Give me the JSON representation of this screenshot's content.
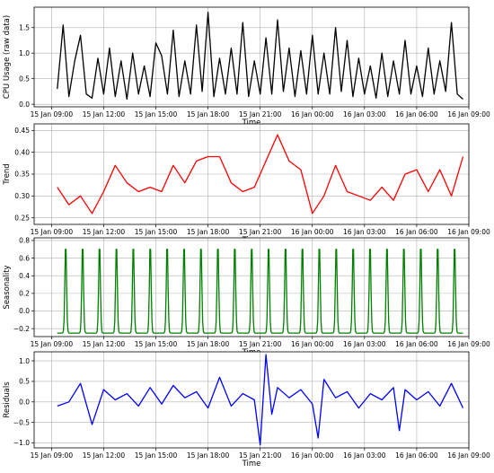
{
  "chart_data": [
    {
      "type": "line",
      "ylabel": "CPU Usage (raw data)",
      "xlabel": "Time",
      "x_start": "15 Jan 09:00",
      "x_end": "16 Jan 09:00",
      "xticks": [
        "15 Jan 09:00",
        "15 Jan 12:00",
        "15 Jan 15:00",
        "15 Jan 18:00",
        "15 Jan 21:00",
        "16 Jan 00:00",
        "16 Jan 03:00",
        "16 Jan 06:00",
        "16 Jan 09:00"
      ],
      "ylim": [
        -0.05,
        1.9
      ],
      "yticks": [
        0.0,
        0.5,
        1.0,
        1.5
      ],
      "yticklabels": [
        "0.0",
        "0.5",
        "1.0",
        "1.5"
      ],
      "grid": true,
      "color": "#000000",
      "series": [
        {
          "x": [
            "15 Jan 09:20",
            "15 Jan 09:40",
            "15 Jan 10:00",
            "15 Jan 10:20",
            "15 Jan 10:40",
            "15 Jan 11:00",
            "15 Jan 11:20",
            "15 Jan 11:40",
            "15 Jan 12:00",
            "15 Jan 12:20",
            "15 Jan 12:40",
            "15 Jan 13:00",
            "15 Jan 13:20",
            "15 Jan 13:40",
            "15 Jan 14:00",
            "15 Jan 14:20",
            "15 Jan 14:40",
            "15 Jan 15:00",
            "15 Jan 15:20",
            "15 Jan 15:40",
            "15 Jan 16:00",
            "15 Jan 16:20",
            "15 Jan 16:40",
            "15 Jan 17:00",
            "15 Jan 17:20",
            "15 Jan 17:40",
            "15 Jan 18:00",
            "15 Jan 18:20",
            "15 Jan 18:40",
            "15 Jan 19:00",
            "15 Jan 19:20",
            "15 Jan 19:40",
            "15 Jan 20:00",
            "15 Jan 20:20",
            "15 Jan 20:40",
            "15 Jan 21:00",
            "15 Jan 21:20",
            "15 Jan 21:40",
            "15 Jan 22:00",
            "15 Jan 22:20",
            "15 Jan 22:40",
            "15 Jan 23:00",
            "15 Jan 23:20",
            "15 Jan 23:40",
            "16 Jan 00:00",
            "16 Jan 00:20",
            "16 Jan 00:40",
            "16 Jan 01:00",
            "16 Jan 01:20",
            "16 Jan 01:40",
            "16 Jan 02:00",
            "16 Jan 02:20",
            "16 Jan 02:40",
            "16 Jan 03:00",
            "16 Jan 03:20",
            "16 Jan 03:40",
            "16 Jan 04:00",
            "16 Jan 04:20",
            "16 Jan 04:40",
            "16 Jan 05:00",
            "16 Jan 05:20",
            "16 Jan 05:40",
            "16 Jan 06:00",
            "16 Jan 06:20",
            "16 Jan 06:40",
            "16 Jan 07:00",
            "16 Jan 07:20",
            "16 Jan 07:40",
            "16 Jan 08:00",
            "16 Jan 08:20",
            "16 Jan 08:40"
          ],
          "values": [
            0.3,
            1.55,
            0.15,
            0.85,
            1.35,
            0.2,
            0.12,
            0.9,
            0.2,
            1.1,
            0.15,
            0.85,
            0.1,
            1.0,
            0.2,
            0.75,
            0.15,
            1.2,
            0.95,
            0.2,
            1.45,
            0.15,
            0.85,
            0.2,
            1.55,
            0.25,
            1.8,
            0.15,
            0.9,
            0.2,
            1.1,
            0.2,
            1.6,
            0.15,
            0.85,
            0.2,
            1.3,
            0.2,
            1.65,
            0.25,
            1.1,
            0.15,
            1.05,
            0.2,
            1.35,
            0.2,
            1.0,
            0.2,
            1.5,
            0.25,
            1.25,
            0.15,
            0.9,
            0.2,
            0.75,
            0.12,
            1.0,
            0.15,
            0.85,
            0.2,
            1.25,
            0.2,
            0.75,
            0.15,
            1.1,
            0.2,
            0.85,
            0.25,
            1.6,
            0.2,
            0.1
          ]
        }
      ]
    },
    {
      "type": "line",
      "ylabel": "Trend",
      "xlabel": "Time",
      "xticks": [
        "15 Jan 09:00",
        "15 Jan 12:00",
        "15 Jan 15:00",
        "15 Jan 18:00",
        "15 Jan 21:00",
        "16 Jan 00:00",
        "16 Jan 03:00",
        "16 Jan 06:00",
        "16 Jan 09:00"
      ],
      "ylim": [
        0.235,
        0.465
      ],
      "yticks": [
        0.25,
        0.3,
        0.35,
        0.4,
        0.45
      ],
      "yticklabels": [
        "0.25",
        "0.30",
        "0.35",
        "0.40",
        "0.45"
      ],
      "grid": true,
      "color": "#ff0000",
      "series": [
        {
          "x": [
            "15 Jan 09:20",
            "15 Jan 10:00",
            "15 Jan 10:40",
            "15 Jan 11:20",
            "15 Jan 12:00",
            "15 Jan 12:40",
            "15 Jan 13:20",
            "15 Jan 14:00",
            "15 Jan 14:40",
            "15 Jan 15:20",
            "15 Jan 16:00",
            "15 Jan 16:40",
            "15 Jan 17:20",
            "15 Jan 18:00",
            "15 Jan 18:40",
            "15 Jan 19:20",
            "15 Jan 20:00",
            "15 Jan 20:40",
            "15 Jan 21:20",
            "15 Jan 22:00",
            "15 Jan 22:40",
            "15 Jan 23:20",
            "16 Jan 00:00",
            "16 Jan 00:40",
            "16 Jan 01:20",
            "16 Jan 02:00",
            "16 Jan 02:40",
            "16 Jan 03:20",
            "16 Jan 04:00",
            "16 Jan 04:40",
            "16 Jan 05:20",
            "16 Jan 06:00",
            "16 Jan 06:40",
            "16 Jan 07:20",
            "16 Jan 08:00",
            "16 Jan 08:40"
          ],
          "values": [
            0.32,
            0.28,
            0.3,
            0.26,
            0.31,
            0.37,
            0.33,
            0.31,
            0.32,
            0.31,
            0.37,
            0.33,
            0.38,
            0.39,
            0.39,
            0.33,
            0.31,
            0.32,
            0.38,
            0.44,
            0.38,
            0.36,
            0.26,
            0.3,
            0.37,
            0.31,
            0.3,
            0.29,
            0.32,
            0.29,
            0.35,
            0.36,
            0.31,
            0.36,
            0.3,
            0.39
          ]
        }
      ]
    },
    {
      "type": "line",
      "ylabel": "Seasonality",
      "xlabel": "Time",
      "xticks": [
        "15 Jan 09:00",
        "15 Jan 12:00",
        "15 Jan 15:00",
        "15 Jan 18:00",
        "15 Jan 21:00",
        "16 Jan 00:00",
        "16 Jan 03:00",
        "16 Jan 06:00",
        "16 Jan 09:00"
      ],
      "ylim": [
        -0.29,
        0.83
      ],
      "yticks": [
        -0.2,
        0.0,
        0.2,
        0.4,
        0.6,
        0.8
      ],
      "yticklabels": [
        "−0.2",
        "0.0",
        "0.2",
        "0.4",
        "0.6",
        "0.8"
      ],
      "grid": true,
      "color": "#008000",
      "peak_max": 0.78,
      "trough_min": -0.25,
      "cycles": 24
    },
    {
      "type": "line",
      "ylabel": "Residuals",
      "xlabel": "Time",
      "xticks": [
        "15 Jan 09:00",
        "15 Jan 12:00",
        "15 Jan 15:00",
        "15 Jan 18:00",
        "15 Jan 21:00",
        "16 Jan 00:00",
        "16 Jan 03:00",
        "16 Jan 06:00",
        "16 Jan 09:00"
      ],
      "ylim": [
        -1.12,
        1.22
      ],
      "yticks": [
        -1.0,
        -0.5,
        0.0,
        0.5,
        1.0
      ],
      "yticklabels": [
        "−1.0",
        "−0.5",
        "0.0",
        "0.5",
        "1.0"
      ],
      "grid": true,
      "color": "#0000ff",
      "series": [
        {
          "x": [
            "15 Jan 09:20",
            "15 Jan 10:00",
            "15 Jan 10:40",
            "15 Jan 11:20",
            "15 Jan 12:00",
            "15 Jan 12:40",
            "15 Jan 13:20",
            "15 Jan 14:00",
            "15 Jan 14:40",
            "15 Jan 15:20",
            "15 Jan 16:00",
            "15 Jan 16:40",
            "15 Jan 17:20",
            "15 Jan 18:00",
            "15 Jan 18:40",
            "15 Jan 19:20",
            "15 Jan 20:00",
            "15 Jan 20:40",
            "15 Jan 21:00",
            "15 Jan 21:20",
            "15 Jan 21:40",
            "15 Jan 22:00",
            "15 Jan 22:40",
            "15 Jan 23:20",
            "16 Jan 00:00",
            "16 Jan 00:20",
            "16 Jan 00:40",
            "16 Jan 01:20",
            "16 Jan 02:00",
            "16 Jan 02:40",
            "16 Jan 03:20",
            "16 Jan 04:00",
            "16 Jan 04:40",
            "16 Jan 05:00",
            "16 Jan 05:20",
            "16 Jan 06:00",
            "16 Jan 06:40",
            "16 Jan 07:20",
            "16 Jan 08:00",
            "16 Jan 08:40"
          ],
          "values": [
            -0.1,
            0.0,
            0.45,
            -0.55,
            0.3,
            0.05,
            0.2,
            -0.1,
            0.35,
            -0.05,
            0.4,
            0.1,
            0.25,
            -0.15,
            0.6,
            -0.1,
            0.2,
            0.05,
            -1.05,
            1.15,
            -0.3,
            0.35,
            0.1,
            0.3,
            -0.05,
            -0.88,
            0.55,
            0.1,
            0.25,
            -0.15,
            0.2,
            0.05,
            0.35,
            -0.7,
            0.3,
            0.05,
            0.25,
            -0.1,
            0.45,
            -0.15
          ]
        }
      ]
    }
  ]
}
